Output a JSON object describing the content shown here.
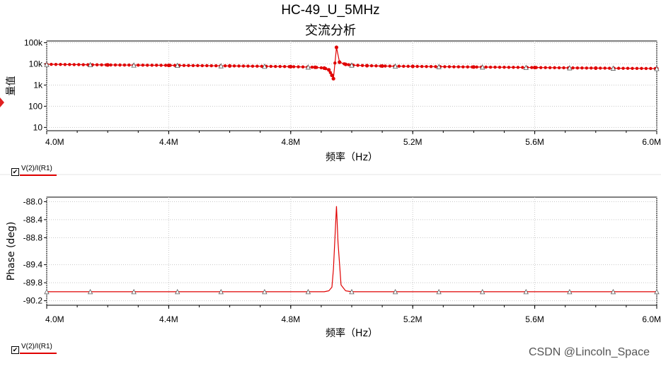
{
  "title": "HC-49_U_5MHz",
  "subtitle": "交流分析",
  "watermark": "CSDN @Lincoln_Space",
  "colors": {
    "trace": "#e00000",
    "grid": "#c8c8c8",
    "background": "#ffffff"
  },
  "chart_data": [
    {
      "type": "line",
      "ylabel": "量值",
      "xlabel": "频率（Hz）",
      "yscale": "log",
      "ylim": [
        7,
        120000
      ],
      "xlim": [
        4000000,
        6000000
      ],
      "grid": true,
      "xticks": [
        {
          "v": 4000000,
          "label": "4.0M"
        },
        {
          "v": 4400000,
          "label": "4.4M"
        },
        {
          "v": 4800000,
          "label": "4.8M"
        },
        {
          "v": 5200000,
          "label": "5.2M"
        },
        {
          "v": 5600000,
          "label": "5.6M"
        },
        {
          "v": 6000000,
          "label": "6.0M"
        }
      ],
      "yticks": [
        {
          "v": 100000,
          "label": "100k"
        },
        {
          "v": 10000,
          "label": "10k"
        },
        {
          "v": 1000,
          "label": "1k"
        },
        {
          "v": 100,
          "label": "100"
        },
        {
          "v": 10,
          "label": "10"
        }
      ],
      "legend": "V(2)/I(R1)",
      "marker": "circle",
      "series": [
        {
          "name": "V(2)/I(R1)",
          "x": [
            4000000,
            4200000,
            4400000,
            4600000,
            4800000,
            4880000,
            4910000,
            4925000,
            4935000,
            4940000,
            4950000,
            4960000,
            4980000,
            5000000,
            5050000,
            5100000,
            5200000,
            5400000,
            5600000,
            5800000,
            6000000
          ],
          "values": [
            9500,
            8900,
            8500,
            8000,
            7400,
            6900,
            6300,
            5200,
            2900,
            2000,
            60000,
            12000,
            9500,
            8700,
            8200,
            7900,
            7600,
            7100,
            6700,
            6300,
            6000
          ]
        }
      ]
    },
    {
      "type": "line",
      "ylabel": "Phase (deg)",
      "xlabel": "频率（Hz）",
      "ylim": [
        -90.3,
        -87.9
      ],
      "xlim": [
        4000000,
        6000000
      ],
      "grid": true,
      "xticks": [
        {
          "v": 4000000,
          "label": "4.0M"
        },
        {
          "v": 4400000,
          "label": "4.4M"
        },
        {
          "v": 4800000,
          "label": "4.8M"
        },
        {
          "v": 5200000,
          "label": "5.2M"
        },
        {
          "v": 5600000,
          "label": "5.6M"
        },
        {
          "v": 6000000,
          "label": "6.0M"
        }
      ],
      "yticks": [
        {
          "v": -88.0,
          "label": "-88.0"
        },
        {
          "v": -88.4,
          "label": "-88.4"
        },
        {
          "v": -88.8,
          "label": "-88.8"
        },
        {
          "v": -89.4,
          "label": "-89.4"
        },
        {
          "v": -89.8,
          "label": "-89.8"
        },
        {
          "v": -90.2,
          "label": "-90.2"
        }
      ],
      "legend": "V(2)/I(R1)",
      "marker": "none",
      "series": [
        {
          "name": "V(2)/I(R1)",
          "x": [
            4000000,
            4800000,
            4880000,
            4910000,
            4925000,
            4935000,
            4940000,
            4945000,
            4950000,
            4955000,
            4965000,
            4980000,
            5000000,
            6000000
          ],
          "values": [
            -90.0,
            -90.0,
            -90.0,
            -90.0,
            -89.98,
            -89.9,
            -89.5,
            -88.8,
            -88.1,
            -88.9,
            -89.85,
            -89.98,
            -90.0,
            -90.0
          ]
        }
      ]
    }
  ]
}
